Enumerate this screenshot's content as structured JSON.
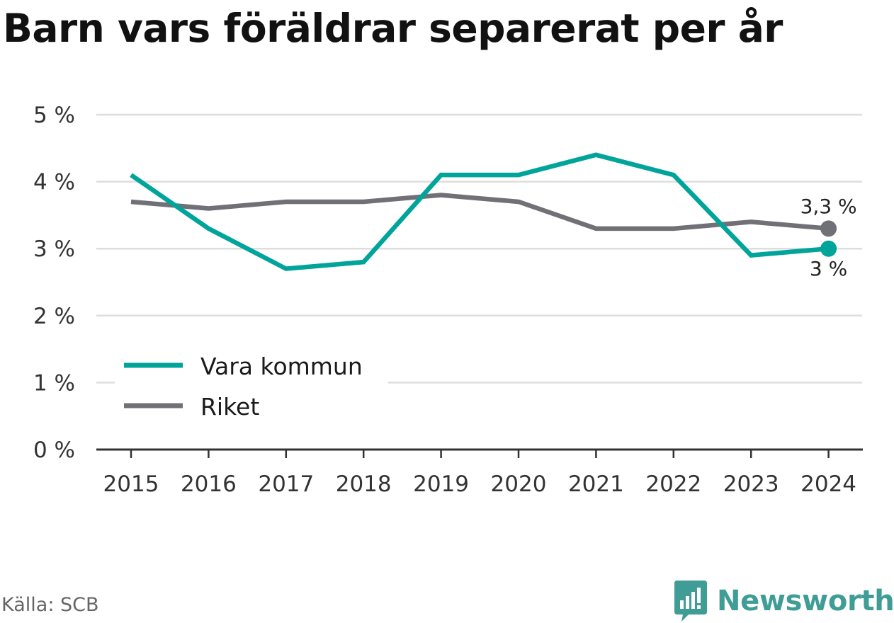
{
  "title": "Barn vars föräldrar separerat per år",
  "source": "Källa: SCB",
  "brand": "Newsworthy",
  "colors": {
    "vara": "#00a49a",
    "riket": "#707077",
    "brand": "#3f9d96"
  },
  "chart_data": {
    "type": "line",
    "title": "Barn vars föräldrar separerat per år",
    "x": [
      "2015",
      "2016",
      "2017",
      "2018",
      "2019",
      "2020",
      "2021",
      "2022",
      "2023",
      "2024"
    ],
    "series": [
      {
        "name": "Vara kommun",
        "values": [
          4.1,
          3.3,
          2.7,
          2.8,
          4.1,
          4.1,
          4.4,
          4.1,
          2.9,
          3.0
        ],
        "end_label": "3 %"
      },
      {
        "name": "Riket",
        "values": [
          3.7,
          3.6,
          3.7,
          3.7,
          3.8,
          3.7,
          3.3,
          3.3,
          3.4,
          3.3
        ],
        "end_label": "3,3 %"
      }
    ],
    "yticks": [
      "0 %",
      "1 %",
      "2 %",
      "3 %",
      "4 %",
      "5 %"
    ],
    "ylim": [
      0,
      5
    ],
    "unit": "%",
    "grid": true,
    "legend": "bottom-left"
  }
}
